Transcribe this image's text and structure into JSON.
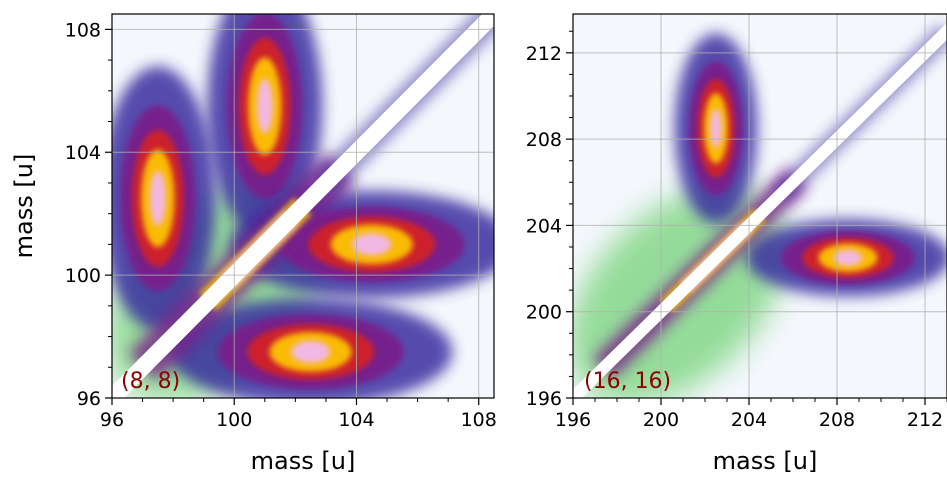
{
  "chart_data": [
    {
      "type": "heatmap",
      "xlabel": "mass [u]",
      "ylabel": "mass [u]",
      "xlim": [
        96,
        108.5
      ],
      "ylim": [
        96,
        108.5
      ],
      "xticks": [
        96,
        100,
        104,
        108
      ],
      "yticks": [
        96,
        100,
        104,
        108
      ],
      "x_tick_labels": [
        "96",
        "100",
        "104",
        "108"
      ],
      "y_tick_labels": [
        "96",
        "100",
        "104",
        "108"
      ],
      "annotation": "(8, 8)",
      "grid": true,
      "colormap": [
        "#ffffff",
        "#dfe8f7",
        "#c6ecc4",
        "#22bb22",
        "#3b2fa0",
        "#7a1e8a",
        "#d62020",
        "#ffcc00",
        "#f2b8f0"
      ],
      "features": {
        "diagonal_gap": true,
        "lobe_centers": [
          {
            "x": 101,
            "y": 105.5
          },
          {
            "x": 104.5,
            "y": 101
          },
          {
            "x": 97.5,
            "y": 102.5
          },
          {
            "x": 102.5,
            "y": 97.5
          }
        ]
      }
    },
    {
      "type": "heatmap",
      "xlabel": "mass [u]",
      "ylabel": "",
      "xlim": [
        196,
        213
      ],
      "ylim": [
        196,
        213.8
      ],
      "xticks": [
        196,
        200,
        204,
        208,
        212
      ],
      "yticks": [
        196,
        200,
        204,
        208,
        212
      ],
      "x_tick_labels": [
        "196",
        "200",
        "204",
        "208",
        "212"
      ],
      "y_tick_labels": [
        "196",
        "200",
        "204",
        "208",
        "212"
      ],
      "annotation": "(16, 16)",
      "grid": true,
      "colormap": [
        "#ffffff",
        "#dfe8f7",
        "#c6ecc4",
        "#22bb22",
        "#3b2fa0",
        "#7a1e8a",
        "#d62020",
        "#ffcc00",
        "#f2b8f0"
      ],
      "features": {
        "diagonal_gap": true,
        "lobe_centers": [
          {
            "x": 202.5,
            "y": 208.5
          },
          {
            "x": 208.5,
            "y": 202.5
          }
        ]
      }
    }
  ]
}
